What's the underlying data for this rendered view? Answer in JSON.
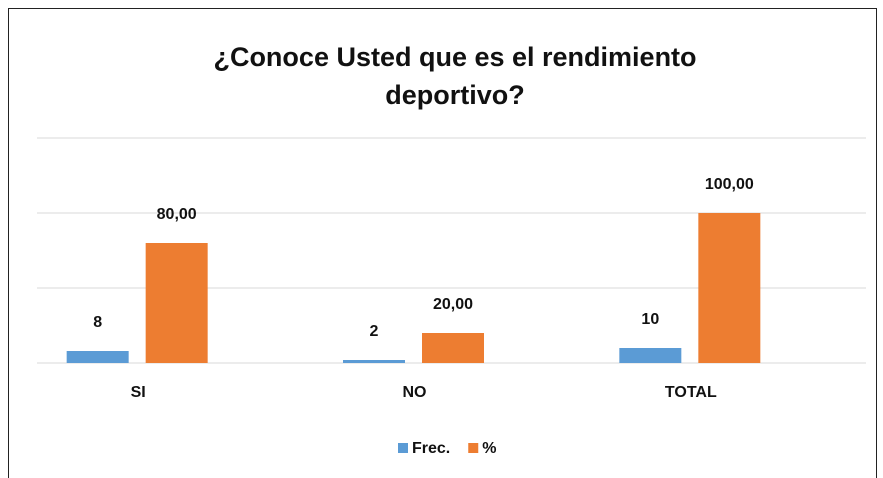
{
  "chart_data": {
    "type": "bar",
    "title": "¿Conoce Usted que es el rendimiento deportivo?",
    "categories": [
      "SI",
      "NO",
      "TOTAL"
    ],
    "series": [
      {
        "name": "Frec.",
        "color": "#5b9bd5",
        "values": [
          8,
          2,
          10
        ]
      },
      {
        "name": "%",
        "color": "#ed7d31",
        "values": [
          80,
          20,
          100
        ],
        "value_labels": [
          "80,00",
          "20,00",
          "100,00"
        ]
      }
    ],
    "ylim": [
      0,
      150
    ],
    "yticks": [
      0,
      50,
      100,
      150
    ],
    "grid": true,
    "legend": "bottom"
  }
}
